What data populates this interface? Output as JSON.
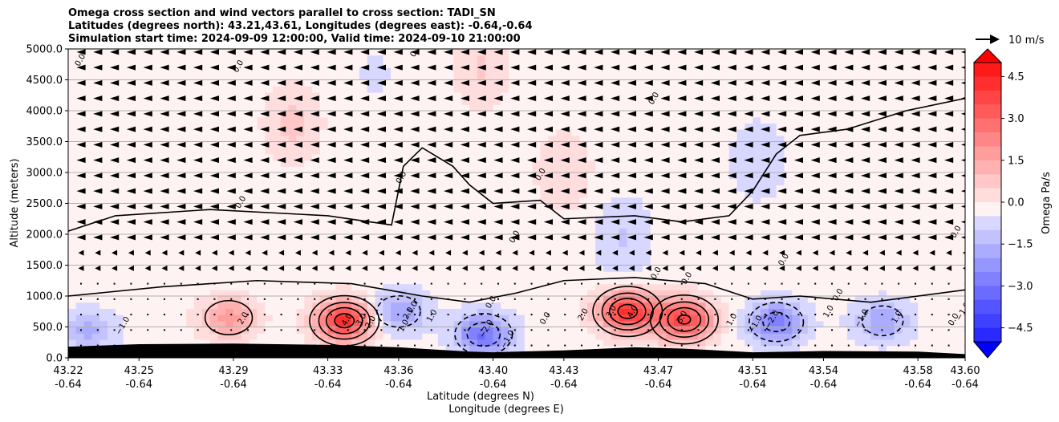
{
  "chart_data": {
    "type": "heatmap",
    "title_lines": [
      "Omega cross section and wind vectors parallel to cross section: TADI_SN",
      "Latitudes (degrees north): 43.21,43.61, Longitudes (degrees east): -0.64,-0.64",
      "Simulation start time: 2024-09-09 12:00:00, Valid time: 2024-09-10 21:00:00"
    ],
    "ylabel": "Altitude (meters)",
    "xlabel_lines": [
      "Latitude (degrees N)",
      "Longitude (degrees E)"
    ],
    "x_ticks": [
      {
        "lat": "43.22",
        "lon": "-0.64"
      },
      {
        "lat": "43.25",
        "lon": "-0.64"
      },
      {
        "lat": "43.29",
        "lon": "-0.64"
      },
      {
        "lat": "43.33",
        "lon": "-0.64"
      },
      {
        "lat": "43.36",
        "lon": "-0.64"
      },
      {
        "lat": "43.40",
        "lon": "-0.64"
      },
      {
        "lat": "43.43",
        "lon": "-0.64"
      },
      {
        "lat": "43.47",
        "lon": "-0.64"
      },
      {
        "lat": "43.51",
        "lon": "-0.64"
      },
      {
        "lat": "43.54",
        "lon": "-0.64"
      },
      {
        "lat": "43.58",
        "lon": "-0.64"
      },
      {
        "lat": "43.60",
        "lon": "-0.64"
      }
    ],
    "y_ticks": [
      "0.0",
      "500.0",
      "1000.0",
      "1500.0",
      "2000.0",
      "2500.0",
      "3000.0",
      "3500.0",
      "4000.0",
      "4500.0",
      "5000.0"
    ],
    "ylim": [
      0,
      5000
    ],
    "grid": "horizontal",
    "colorbar": {
      "label": "Omega Pa/s",
      "ticks": [
        "4.5",
        "3.0",
        "1.5",
        "0.0",
        "−1.5",
        "−3.0",
        "−4.5"
      ],
      "range": [
        -5,
        5
      ],
      "colors": [
        "#0000ff",
        "#ffffff",
        "#ff0000"
      ],
      "extend": "both"
    },
    "quiver_key": "10 m/s",
    "wind": {
      "direction": "toward south (left)",
      "upper_speed_ms": 4,
      "lower_speed_ms": 1
    },
    "omega_features": [
      {
        "x": 43.337,
        "y": 600,
        "value": 4.5
      },
      {
        "x": 43.457,
        "y": 750,
        "value": 4.5
      },
      {
        "x": 43.481,
        "y": 620,
        "value": 4.2
      },
      {
        "x": 43.288,
        "y": 650,
        "value": 2.0
      },
      {
        "x": 43.315,
        "y": 3800,
        "value": 0.9
      },
      {
        "x": 43.395,
        "y": 4700,
        "value": 0.8
      },
      {
        "x": 43.43,
        "y": 3000,
        "value": 0.7
      },
      {
        "x": 43.396,
        "y": 380,
        "value": -2.8
      },
      {
        "x": 43.36,
        "y": 750,
        "value": -1.8
      },
      {
        "x": 43.52,
        "y": 580,
        "value": -2.5
      },
      {
        "x": 43.565,
        "y": 600,
        "value": -1.7
      },
      {
        "x": 43.228,
        "y": 450,
        "value": -1.4
      },
      {
        "x": 43.455,
        "y": 1950,
        "value": -0.8
      },
      {
        "x": 43.512,
        "y": 3200,
        "value": -0.7
      },
      {
        "x": 43.35,
        "y": 4600,
        "value": -0.3
      }
    ],
    "contour_labels": [
      {
        "text": "0.0",
        "x": 43.226,
        "y": 4800
      },
      {
        "text": "0.0",
        "x": 43.293,
        "y": 4700
      },
      {
        "text": "0.0",
        "x": 43.368,
        "y": 4950
      },
      {
        "text": "0.0",
        "x": 43.469,
        "y": 4180
      },
      {
        "text": "0.0",
        "x": 43.362,
        "y": 2900
      },
      {
        "text": "0.0",
        "x": 43.421,
        "y": 2950
      },
      {
        "text": "0.0",
        "x": 43.294,
        "y": 2500
      },
      {
        "text": "0.0",
        "x": 43.41,
        "y": 1940
      },
      {
        "text": "0.0",
        "x": 43.47,
        "y": 1350
      },
      {
        "text": "0.0",
        "x": 43.483,
        "y": 1270
      },
      {
        "text": "0.0",
        "x": 43.524,
        "y": 1570
      },
      {
        "text": "0.0",
        "x": 43.547,
        "y": 1000
      },
      {
        "text": "0.0",
        "x": 43.597,
        "y": 2020
      },
      {
        "text": "0.0",
        "x": 43.4,
        "y": 880
      },
      {
        "text": "0.0",
        "x": 43.423,
        "y": 620
      },
      {
        "text": "0.0",
        "x": 43.596,
        "y": 600
      },
      {
        "text": "2.0",
        "x": 43.295,
        "y": 620
      },
      {
        "text": "2.0",
        "x": 43.349,
        "y": 560
      },
      {
        "text": "3.0",
        "x": 43.345,
        "y": 600
      },
      {
        "text": "4.0",
        "x": 43.339,
        "y": 600
      },
      {
        "text": "2.0",
        "x": 43.439,
        "y": 680
      },
      {
        "text": "3.0",
        "x": 43.451,
        "y": 730
      },
      {
        "text": "4.0",
        "x": 43.46,
        "y": 730
      },
      {
        "text": "3.0",
        "x": 43.481,
        "y": 640
      },
      {
        "text": "1.0",
        "x": 43.363,
        "y": 500
      },
      {
        "text": "2.0",
        "x": 43.365,
        "y": 700
      },
      {
        "text": "1.0",
        "x": 43.375,
        "y": 660
      },
      {
        "text": "1.0",
        "x": 43.502,
        "y": 600
      },
      {
        "text": "1.0",
        "x": 43.543,
        "y": 730
      },
      {
        "text": "1.0",
        "x": 43.572,
        "y": 640
      },
      {
        "text": "−1.0",
        "x": 43.244,
        "y": 500
      },
      {
        "text": "−1.0",
        "x": 43.366,
        "y": 750
      },
      {
        "text": "−2.0",
        "x": 43.398,
        "y": 450
      },
      {
        "text": "−1.0",
        "x": 43.407,
        "y": 280
      },
      {
        "text": "−1.0",
        "x": 43.512,
        "y": 520
      },
      {
        "text": "−2.0",
        "x": 43.519,
        "y": 600
      },
      {
        "text": "−1.0",
        "x": 43.557,
        "y": 620
      },
      {
        "text": "−1.0",
        "x": 43.6,
        "y": 730
      }
    ],
    "terrain": [
      {
        "x": 43.22,
        "y": 180
      },
      {
        "x": 43.25,
        "y": 220
      },
      {
        "x": 43.29,
        "y": 230
      },
      {
        "x": 43.33,
        "y": 210
      },
      {
        "x": 43.36,
        "y": 170
      },
      {
        "x": 43.39,
        "y": 100
      },
      {
        "x": 43.4,
        "y": 90
      },
      {
        "x": 43.43,
        "y": 120
      },
      {
        "x": 43.46,
        "y": 170
      },
      {
        "x": 43.48,
        "y": 150
      },
      {
        "x": 43.51,
        "y": 90
      },
      {
        "x": 43.54,
        "y": 110
      },
      {
        "x": 43.58,
        "y": 100
      },
      {
        "x": 43.6,
        "y": 60
      }
    ]
  }
}
